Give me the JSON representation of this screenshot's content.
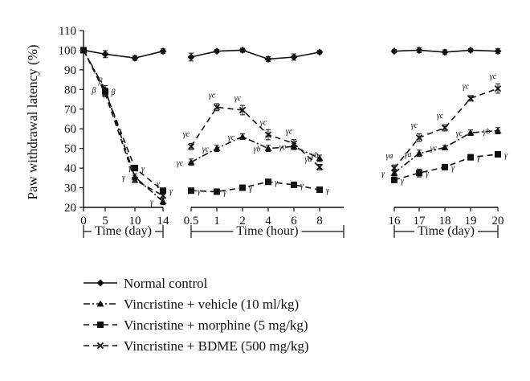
{
  "chart_data": {
    "type": "line",
    "ylabel": "Paw withdrawal latency (%)",
    "ylim": [
      20,
      110
    ],
    "yticks": [
      20,
      30,
      40,
      50,
      60,
      70,
      80,
      90,
      100,
      110
    ],
    "grid": false,
    "legend_placement": "bottom",
    "colors": {
      "ink": "#111111",
      "background": "#ffffff"
    },
    "segments": [
      {
        "xlabel": "Time (day)",
        "categories": [
          "0",
          "5",
          "10",
          "14"
        ],
        "series": [
          {
            "name": "Normal control",
            "values": [
              100,
              98,
              96,
              99.5
            ],
            "errors": [
              0.8,
              1.8,
              1.2,
              1.2
            ],
            "annotations": [
              "",
              "",
              "",
              ""
            ]
          },
          {
            "name": "Vincristine + vehicle (10 ml/kg)",
            "values": [
              100,
              80,
              35.5,
              23
            ],
            "errors": [
              0.8,
              2.0,
              1.6,
              1.6
            ],
            "annotations": [
              "",
              "β",
              "γ",
              "γ"
            ]
          },
          {
            "name": "Vincristine + morphine (5 mg/kg)",
            "values": [
              100,
              79,
              40,
              28.5
            ],
            "errors": [
              0.8,
              1.8,
              1.4,
              1.2
            ],
            "annotations": [
              "",
              "β",
              "γ",
              "γ"
            ]
          },
          {
            "name": "Vincristine + BDME (500 mg/kg)",
            "values": [
              100,
              78,
              34,
              26
            ],
            "errors": [
              0.8,
              1.8,
              1.4,
              1.2
            ],
            "annotations": [
              "",
              "β",
              "γ",
              "γ"
            ]
          }
        ]
      },
      {
        "xlabel": "Time (hour)",
        "categories": [
          "0.5",
          "1",
          "2",
          "4",
          "6",
          "8"
        ],
        "series": [
          {
            "name": "Normal control",
            "values": [
              96.5,
              99.5,
              100,
              95.5,
              96.5,
              99
            ],
            "errors": [
              2.0,
              0.8,
              1.0,
              1.2,
              1.6,
              0.8
            ],
            "annotations": [
              "",
              "",
              "",
              "",
              "",
              ""
            ]
          },
          {
            "name": "Vincristine + vehicle (10 ml/kg)",
            "values": [
              43,
              50,
              56,
              50,
              51,
              45
            ],
            "errors": [
              1.6,
              1.6,
              1.4,
              1.6,
              1.6,
              1.6
            ],
            "annotations": [
              "γc",
              "γc",
              "γc",
              "γb",
              "γc",
              "γa"
            ]
          },
          {
            "name": "Vincristine + morphine (5 mg/kg)",
            "values": [
              28.5,
              28,
              30,
              33,
              31.5,
              29
            ],
            "errors": [
              1.0,
              1.0,
              1.0,
              1.0,
              1.0,
              0.8
            ],
            "annotations": [
              "γ",
              "γ",
              "γ",
              "γ",
              "γ",
              "γ"
            ]
          },
          {
            "name": "Vincristine + BDME (500 mg/kg)",
            "values": [
              51,
              71,
              69.5,
              57,
              52.5,
              40.5
            ],
            "errors": [
              1.6,
              1.8,
              2.4,
              2.6,
              2.0,
              1.4
            ],
            "annotations": [
              "γc",
              "γc",
              "γc",
              "γc",
              "γc",
              "γb"
            ]
          }
        ]
      },
      {
        "xlabel": "Time (day)",
        "categories": [
          "16",
          "17",
          "18",
          "19",
          "20"
        ],
        "series": [
          {
            "name": "Normal control",
            "values": [
              99.5,
              100,
              99,
              100,
              99.5
            ],
            "errors": [
              0.8,
              1.2,
              1.2,
              0.8,
              1.2
            ],
            "annotations": [
              "",
              "",
              "",
              "",
              ""
            ]
          },
          {
            "name": "Vincristine + vehicle (10 ml/kg)",
            "values": [
              37.5,
              47.5,
              50.5,
              58,
              59
            ],
            "errors": [
              1.4,
              1.6,
              1.0,
              1.4,
              1.6
            ],
            "annotations": [
              "γ",
              "γa",
              "γc",
              "γc",
              "γb"
            ]
          },
          {
            "name": "Vincristine + morphine (5 mg/kg)",
            "values": [
              34,
              37.5,
              40.5,
              45.5,
              47
            ],
            "errors": [
              1.4,
              2.0,
              1.4,
              1.4,
              1.4
            ],
            "annotations": [
              "γ",
              "γ",
              "γ",
              "γ",
              "γ"
            ]
          },
          {
            "name": "Vincristine + BDME (500 mg/kg)",
            "values": [
              40,
              55.5,
              60.5,
              75.5,
              80.5
            ],
            "errors": [
              1.6,
              2.0,
              1.6,
              1.4,
              2.4
            ],
            "annotations": [
              "γa",
              "γc",
              "γc",
              "γc",
              "γc"
            ]
          }
        ]
      }
    ],
    "legend": [
      {
        "label": "Normal control",
        "marker": "diamond",
        "dash": "solid"
      },
      {
        "label": "Vincristine + vehicle (10 ml/kg)",
        "marker": "triangle",
        "dash": "dashdot"
      },
      {
        "label": "Vincristine + morphine (5 mg/kg)",
        "marker": "square",
        "dash": "dashed"
      },
      {
        "label": "Vincristine + BDME (500 mg/kg)",
        "marker": "cross",
        "dash": "dashed"
      }
    ]
  }
}
